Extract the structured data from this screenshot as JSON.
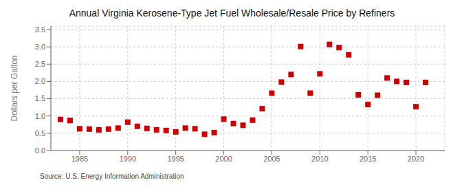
{
  "chart_data": {
    "type": "scatter",
    "title": "Annual Virginia Kerosene-Type Jet Fuel Wholesale/Resale Price by Refiners",
    "y_label": "Dollars per Gallon",
    "source": "Source: U.S. Energy Information Administration",
    "x": [
      1983,
      1984,
      1985,
      1986,
      1987,
      1988,
      1989,
      1990,
      1991,
      1992,
      1993,
      1994,
      1995,
      1996,
      1997,
      1998,
      1999,
      2000,
      2001,
      2002,
      2003,
      2004,
      2005,
      2006,
      2007,
      2008,
      2009,
      2010,
      2011,
      2012,
      2013,
      2014,
      2015,
      2016,
      2017,
      2018,
      2019,
      2020,
      2021
    ],
    "values": [
      0.9,
      0.87,
      0.63,
      0.62,
      0.6,
      0.62,
      0.65,
      0.82,
      0.7,
      0.64,
      0.6,
      0.58,
      0.54,
      0.65,
      0.63,
      0.47,
      0.52,
      0.91,
      0.78,
      0.73,
      0.88,
      1.21,
      1.66,
      1.98,
      2.2,
      3.01,
      1.66,
      2.22,
      3.07,
      2.98,
      2.77,
      1.61,
      1.33,
      1.6,
      2.1,
      2.0,
      1.97,
      1.27,
      1.97
    ],
    "color": "#cc0000",
    "marker": "square",
    "xlim": [
      1982,
      2023
    ],
    "xticks": [
      1985,
      1990,
      1995,
      2000,
      2005,
      2010,
      2015,
      2020
    ],
    "ylim": [
      0.0,
      3.6
    ],
    "yticks": [
      {
        "value": 0.0,
        "label": "0.0"
      },
      0.5,
      {
        "value": 1.0,
        "label": "1.0"
      },
      1.5,
      {
        "value": 2.0,
        "label": "2.0"
      },
      2.5,
      {
        "value": 3.0,
        "label": "3.0"
      },
      3.5
    ],
    "grid": true
  }
}
